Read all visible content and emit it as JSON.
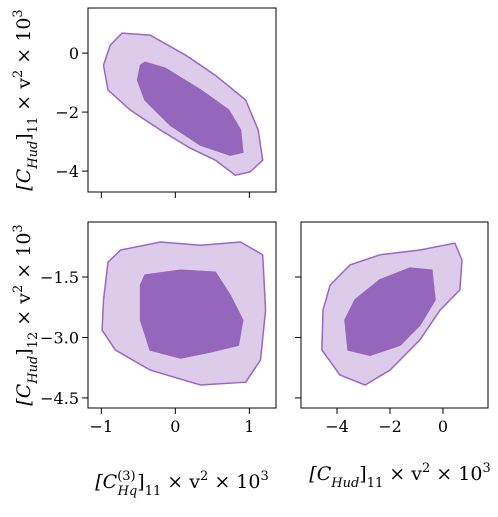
{
  "chart_data": [
    {
      "type": "contour",
      "xlim": [
        -1.18,
        1.36
      ],
      "ylim": [
        -4.71,
        1.53
      ],
      "xticks": [
        {
          "value": -1,
          "label": "−1"
        },
        0,
        1
      ],
      "xticklabels": false,
      "yticks": [
        {
          "value": -4,
          "label": "−4"
        },
        {
          "value": -2,
          "label": "−2"
        },
        0
      ],
      "ylabel": [
        {
          "t": "[C"
        },
        {
          "t": "Hud",
          "s": "sub"
        },
        {
          "t": "]"
        },
        {
          "t": "11",
          "s": "sub"
        },
        {
          "t": " × v"
        },
        {
          "t": "2",
          "s": "sup"
        },
        {
          "t": " × 10"
        },
        {
          "t": "3",
          "s": "sup"
        }
      ],
      "series": [
        {
          "fill": "#dccbe9",
          "edge": "#9a67c4",
          "x": [
            -0.88,
            -0.72,
            -0.34,
            0.14,
            0.54,
            0.95,
            1.12,
            1.18,
            1.01,
            0.81,
            0.54,
            0.2,
            -0.2,
            -0.61,
            -0.91,
            -0.97
          ],
          "y": [
            0.27,
            0.68,
            0.61,
            -0.07,
            -0.75,
            -1.59,
            -2.61,
            -3.63,
            -4.03,
            -4.14,
            -3.63,
            -3.22,
            -2.61,
            -1.93,
            -1.25,
            -0.41
          ]
        },
        {
          "fill": "#9467bd",
          "edge": "#9467bd",
          "x": [
            -0.47,
            -0.41,
            -0.14,
            0.34,
            0.72,
            0.88,
            0.91,
            0.74,
            0.34,
            -0.07,
            -0.41,
            -0.51
          ],
          "y": [
            -0.41,
            -0.31,
            -0.51,
            -1.25,
            -1.93,
            -2.61,
            -3.36,
            -3.46,
            -3.12,
            -2.44,
            -1.59,
            -0.92
          ]
        }
      ]
    },
    {
      "type": "contour",
      "xlim": [
        -1.18,
        1.36
      ],
      "ylim": [
        -4.75,
        -0.135
      ],
      "xticks": [
        {
          "value": -1,
          "label": "−1"
        },
        0,
        1
      ],
      "yticks": [
        {
          "value": -4.5,
          "label": "−4.5"
        },
        {
          "value": -3,
          "label": "−3.0"
        },
        {
          "value": -1.5,
          "label": "−1.5"
        }
      ],
      "ylabel": [
        {
          "t": "[C"
        },
        {
          "t": "Hud",
          "s": "sub"
        },
        {
          "t": "]"
        },
        {
          "t": "12",
          "s": "sub"
        },
        {
          "t": " × v"
        },
        {
          "t": "2",
          "s": "sup"
        },
        {
          "t": " × 10"
        },
        {
          "t": "3",
          "s": "sup"
        }
      ],
      "xlabel": [
        {
          "t": "[C"
        },
        {
          "t": "(3)",
          "s": "sup"
        },
        {
          "t": "Hq",
          "s": "sub"
        },
        {
          "t": "]"
        },
        {
          "t": "11",
          "s": "sub"
        },
        {
          "t": " × v"
        },
        {
          "t": "2",
          "s": "sup"
        },
        {
          "t": " × 10"
        },
        {
          "t": "3",
          "s": "sup"
        }
      ],
      "series": [
        {
          "fill": "#dccbe9",
          "edge": "#9a67c4",
          "x": [
            -0.97,
            -0.91,
            -0.74,
            -0.2,
            0.34,
            0.88,
            1.18,
            1.22,
            1.15,
            0.95,
            0.34,
            -0.34,
            -0.81,
            -0.99
          ],
          "y": [
            -2.07,
            -1.13,
            -0.83,
            -0.63,
            -0.71,
            -0.63,
            -0.95,
            -2.32,
            -3.56,
            -4.11,
            -4.18,
            -3.81,
            -3.31,
            -2.82
          ]
        },
        {
          "fill": "#9467bd",
          "edge": "#9467bd",
          "x": [
            -0.47,
            -0.41,
            0.07,
            0.54,
            0.74,
            0.91,
            0.85,
            0.47,
            0.07,
            -0.34,
            -0.47
          ],
          "y": [
            -1.7,
            -1.45,
            -1.33,
            -1.38,
            -1.95,
            -2.57,
            -3.19,
            -3.36,
            -3.51,
            -3.31,
            -2.57
          ]
        }
      ]
    },
    {
      "type": "contour",
      "xlim": [
        -5.36,
        1.7
      ],
      "ylim": [
        -4.75,
        -0.135
      ],
      "xticks": [
        {
          "value": -4,
          "label": "−4"
        },
        {
          "value": -2,
          "label": "−2"
        },
        0
      ],
      "yticks": [
        -4.5,
        -3,
        -1.5
      ],
      "yticklabels": false,
      "xlabel": [
        {
          "t": "[C"
        },
        {
          "t": "Hud",
          "s": "sub"
        },
        {
          "t": "]"
        },
        {
          "t": "11",
          "s": "sub"
        },
        {
          "t": " × v"
        },
        {
          "t": "2",
          "s": "sup"
        },
        {
          "t": " × 10"
        },
        {
          "t": "3",
          "s": "sup"
        }
      ],
      "series": [
        {
          "fill": "#dccbe9",
          "edge": "#9a67c4",
          "x": [
            -4.53,
            -4.26,
            -3.51,
            -2.38,
            -0.87,
            0.45,
            0.72,
            0.64,
            -0.11,
            -0.87,
            -2.0,
            -2.94,
            -3.89,
            -4.57
          ],
          "y": [
            -2.32,
            -1.7,
            -1.2,
            -0.95,
            -0.83,
            -0.66,
            -1.08,
            -1.82,
            -2.32,
            -3.06,
            -3.81,
            -4.18,
            -3.93,
            -3.31
          ]
        },
        {
          "fill": "#9467bd",
          "edge": "#9467bd",
          "x": [
            -3.7,
            -3.32,
            -2.38,
            -1.25,
            -0.42,
            -0.3,
            -0.87,
            -1.62,
            -2.75,
            -3.58
          ],
          "y": [
            -2.57,
            -2.07,
            -1.57,
            -1.28,
            -1.33,
            -2.07,
            -2.69,
            -3.19,
            -3.44,
            -3.31
          ]
        }
      ]
    }
  ]
}
